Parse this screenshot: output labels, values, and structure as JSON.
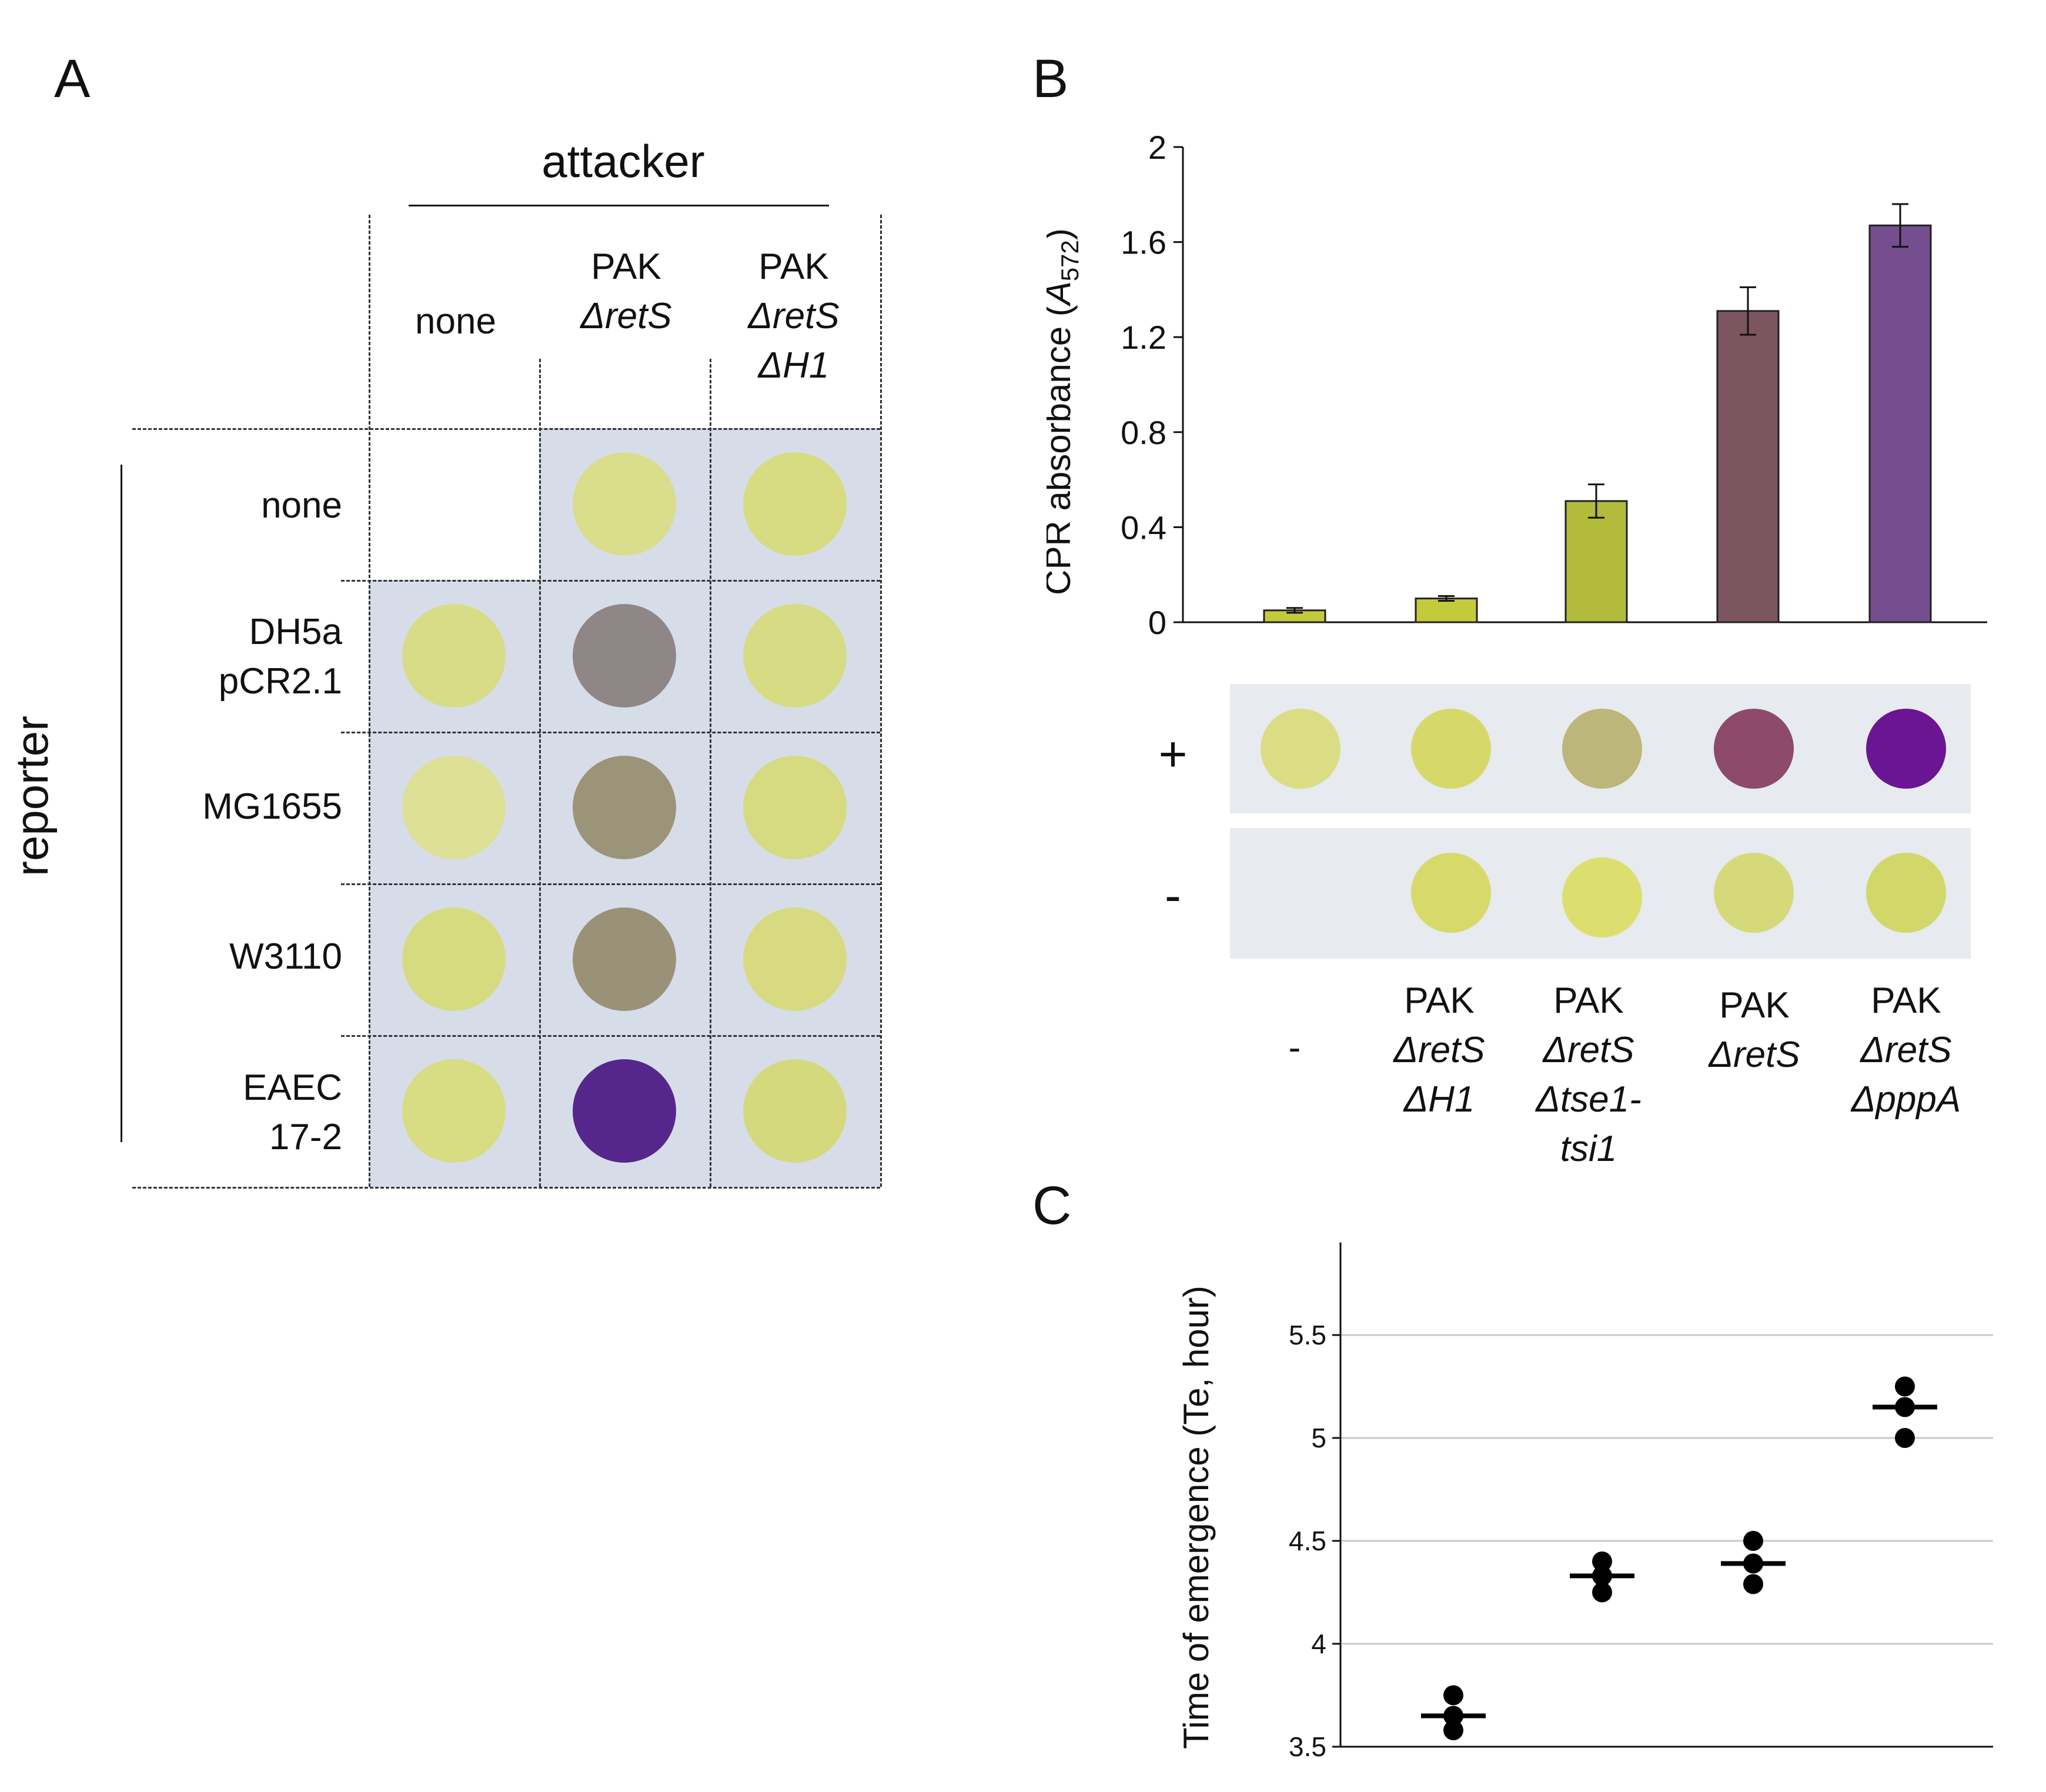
{
  "panels": {
    "a": "A",
    "b": "B",
    "c": "C"
  },
  "panel_a": {
    "attacker_label": "attacker",
    "reporter_label": "reporter",
    "columns": [
      {
        "line1": "none",
        "line2": "",
        "line3": ""
      },
      {
        "line1": "PAK",
        "line2": "ΔretS",
        "line3": ""
      },
      {
        "line1": "PAK",
        "line2": "ΔretS",
        "line3": "ΔH1"
      }
    ],
    "rows": [
      {
        "line1": "none",
        "line2": ""
      },
      {
        "line1": "DH5a",
        "line2": "pCR2.1"
      },
      {
        "line1": "MG1655",
        "line2": ""
      },
      {
        "line1": "W3110",
        "line2": ""
      },
      {
        "line1": "EAEC",
        "line2": "17-2"
      }
    ],
    "spot_colors": [
      [
        null,
        "#d9dd8c",
        "#d7db82"
      ],
      [
        "#d8dc86",
        "#8f8786",
        "#d7db84"
      ],
      [
        "#dde095",
        "#9b9479",
        "#d6da80"
      ],
      [
        "#d7db80",
        "#9a9278",
        "#d7da80"
      ],
      [
        "#d8dc82",
        "#55278c",
        "#d5d97e"
      ]
    ]
  },
  "panel_b": {
    "plus_label": "+",
    "minus_label": "-",
    "categories": [
      {
        "line1": "-",
        "line2": "",
        "line3": "",
        "line4": ""
      },
      {
        "line1": "PAK",
        "line2": "ΔretS",
        "line3": "ΔH1",
        "line4": ""
      },
      {
        "line1": "PAK",
        "line2": "ΔretS",
        "line3": "Δtse1-",
        "line4": "tsi1"
      },
      {
        "line1": "PAK",
        "line2": "ΔretS",
        "line3": "",
        "line4": ""
      },
      {
        "line1": "PAK",
        "line2": "ΔretS",
        "line3": "ΔpppA",
        "line4": ""
      }
    ],
    "plus_spots": [
      "#dadd84",
      "#d6d96a",
      "#bdb67a",
      "#8d4a6a",
      "#6a1591"
    ],
    "minus_spots": [
      null,
      "#d7da6a",
      "#dcdf6e",
      "#d6d97a",
      "#d2d76a"
    ]
  },
  "chart_data": [
    {
      "type": "bar",
      "panel": "B",
      "ylabel_main": "CPR absorbance (",
      "ylabel_var": "A",
      "ylabel_sub": "572",
      "ylabel_end": ")",
      "ylim": [
        0,
        2
      ],
      "yticks": [
        "0",
        "0.4",
        "0.8",
        "1.2",
        "1.6",
        "2"
      ],
      "tick_values": [
        0,
        0.4,
        0.8,
        1.2,
        1.6,
        2
      ],
      "values": [
        0.05,
        0.1,
        0.51,
        1.31,
        1.67
      ],
      "errors": [
        0.01,
        0.01,
        0.07,
        0.1,
        0.09
      ],
      "colors": [
        "#c3cb3d",
        "#c3cb3d",
        "#b3bb3d",
        "#7b5660",
        "#744e8e"
      ]
    },
    {
      "type": "scatter",
      "panel": "C",
      "ylabel": "Time of emergence (Te, hour)",
      "ylim": [
        3.5,
        5.95
      ],
      "yticks": [
        "3.5",
        "4",
        "4.5",
        "5",
        "5.5"
      ],
      "tick_values": [
        3.5,
        4,
        4.5,
        5,
        5.5
      ],
      "grid": true,
      "groups": [
        {
          "points": [
            3.75,
            3.65,
            3.58
          ],
          "mean": 3.65
        },
        {
          "points": [
            4.4,
            4.33,
            4.25
          ],
          "mean": 4.33
        },
        {
          "points": [
            4.5,
            4.39,
            4.29
          ],
          "mean": 4.39
        },
        {
          "points": [
            5.25,
            5.15,
            5.0
          ],
          "mean": 5.15
        }
      ]
    }
  ]
}
